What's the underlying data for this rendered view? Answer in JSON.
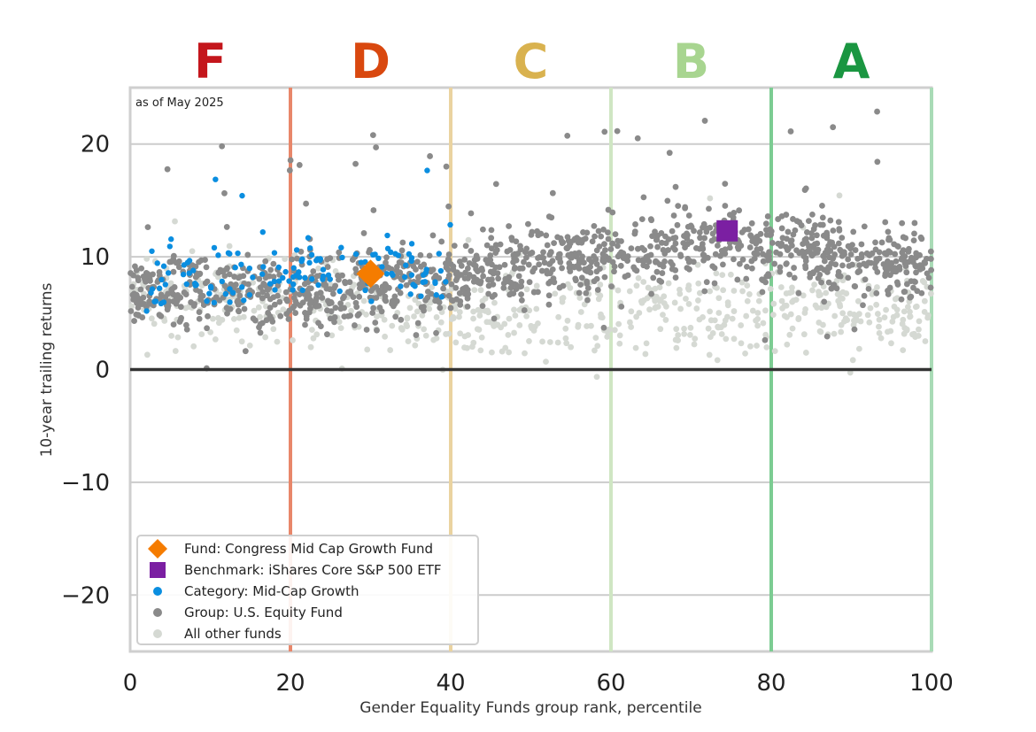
{
  "chart_data": {
    "type": "scatter",
    "xlabel": "Gender Equality Funds group rank, percentile",
    "ylabel": "10-year trailing returns",
    "xlim": [
      0,
      100
    ],
    "ylim": [
      -25,
      25
    ],
    "x_ticks": [
      "0",
      "20",
      "40",
      "60",
      "80",
      "100"
    ],
    "y_ticks": [
      "20",
      "10",
      "0",
      "−10",
      "−20"
    ],
    "grid": "horizontal",
    "annotation": "as of May 2025",
    "legend_position": "lower-left",
    "grade_bands": [
      {
        "label": "F",
        "from": 0,
        "to": 20,
        "color": "#c4161c",
        "line_color": "#e8876a"
      },
      {
        "label": "D",
        "from": 20,
        "to": 40,
        "color": "#d9480f",
        "line_color": "#ead3a0"
      },
      {
        "label": "C",
        "from": 40,
        "to": 60,
        "color": "#d9b24f",
        "line_color": "#cfe6c3"
      },
      {
        "label": "B",
        "from": 60,
        "to": 80,
        "color": "#a8d590",
        "line_color": "#7ccc92"
      },
      {
        "label": "A",
        "from": 80,
        "to": 100,
        "color": "#1a9641",
        "line_color": "#a9dbb6"
      }
    ],
    "series": [
      {
        "name": "All other funds",
        "color": "#d5d9d3",
        "marker": "dot",
        "trend": [
          [
            0,
            6
          ],
          [
            20,
            6
          ],
          [
            40,
            5
          ],
          [
            60,
            5
          ],
          [
            80,
            5.5
          ],
          [
            100,
            5
          ]
        ],
        "spread": 3.5,
        "count": 650
      },
      {
        "name": "Group: U.S. Equity Fund",
        "color": "#8a8a8a",
        "marker": "dot",
        "trend": [
          [
            0,
            7
          ],
          [
            20,
            7
          ],
          [
            40,
            8
          ],
          [
            60,
            10.5
          ],
          [
            75,
            11.5
          ],
          [
            90,
            10
          ],
          [
            100,
            9
          ]
        ],
        "spread": 3,
        "count": 1300
      },
      {
        "name": "Category: Mid-Cap Growth",
        "color": "#0a8ee0",
        "marker": "dot",
        "trend": [
          [
            2,
            8
          ],
          [
            20,
            8.5
          ],
          [
            30,
            9
          ],
          [
            40,
            8.5
          ]
        ],
        "spread": 2.5,
        "count": 140
      },
      {
        "name": "Benchmark: iShares Core S&P 500 ETF",
        "color": "#7b1fa2",
        "marker": "square",
        "points": [
          [
            74.5,
            12.3
          ]
        ]
      },
      {
        "name": "Fund: Congress Mid Cap Growth Fund",
        "color": "#f57c00",
        "marker": "diamond",
        "points": [
          [
            30,
            8.5
          ]
        ]
      }
    ],
    "legend": [
      {
        "label": "Fund: Congress Mid Cap Growth Fund",
        "color": "#f57c00",
        "marker": "diamond"
      },
      {
        "label": "Benchmark: iShares Core S&P 500 ETF",
        "color": "#7b1fa2",
        "marker": "square"
      },
      {
        "label": "Category: Mid-Cap Growth",
        "color": "#0a8ee0",
        "marker": "dot"
      },
      {
        "label": "Group: U.S. Equity Fund",
        "color": "#8a8a8a",
        "marker": "dot"
      },
      {
        "label": "All other funds",
        "color": "#d5d9d3",
        "marker": "dot"
      }
    ]
  }
}
